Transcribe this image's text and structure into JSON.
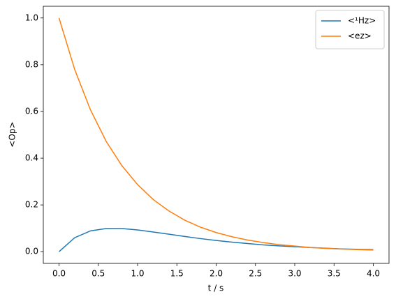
{
  "chart_data": {
    "type": "line",
    "xlabel": "t / s",
    "ylabel": "<Op>",
    "x": [
      0,
      0.2,
      0.4,
      0.6,
      0.8,
      1.0,
      1.2,
      1.4,
      1.6,
      1.8,
      2.0,
      2.2,
      2.4,
      2.6,
      2.8,
      3.0,
      3.2,
      3.4,
      3.6,
      3.8,
      4.0
    ],
    "series": [
      {
        "name": "<¹Hz>",
        "color": "#1f77b4",
        "values": [
          0,
          0.06,
          0.089,
          0.099,
          0.099,
          0.093,
          0.084,
          0.075,
          0.065,
          0.056,
          0.048,
          0.041,
          0.035,
          0.029,
          0.025,
          0.021,
          0.018,
          0.015,
          0.012,
          0.01,
          0.009
        ]
      },
      {
        "name": "<ez>",
        "color": "#ff7f0e",
        "values": [
          1.0,
          0.779,
          0.607,
          0.472,
          0.368,
          0.287,
          0.223,
          0.174,
          0.135,
          0.105,
          0.082,
          0.064,
          0.05,
          0.039,
          0.03,
          0.024,
          0.018,
          0.014,
          0.011,
          0.009,
          0.007
        ]
      }
    ],
    "xlim": [
      -0.2,
      4.2
    ],
    "ylim": [
      -0.05,
      1.05
    ],
    "xticks": [
      {
        "value": 0,
        "label": "0.0"
      },
      0.5,
      {
        "value": 1,
        "label": "1.0"
      },
      1.5,
      {
        "value": 2,
        "label": "2.0"
      },
      2.5,
      {
        "value": 3,
        "label": "3.0"
      },
      3.5,
      {
        "value": 4,
        "label": "4.0"
      }
    ],
    "yticks": [
      {
        "value": 0,
        "label": "0.0"
      },
      0.2,
      0.4,
      0.6,
      0.8,
      {
        "value": 1,
        "label": "1.0"
      }
    ],
    "grid": false,
    "legend": "upper right"
  }
}
